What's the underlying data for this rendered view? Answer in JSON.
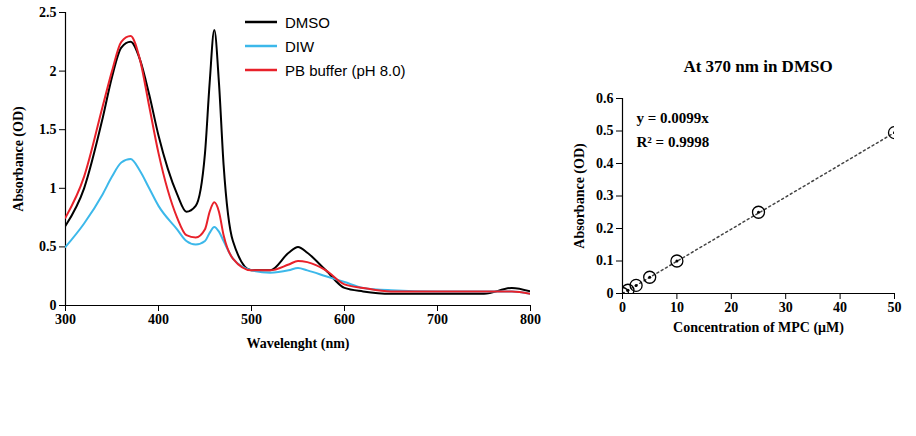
{
  "chart_data": [
    {
      "type": "line",
      "x_label": "Wavelenght (nm)",
      "y_label": "Absorbance (OD)",
      "x": [
        300,
        320,
        340,
        350,
        360,
        370,
        380,
        390,
        400,
        420,
        430,
        440,
        450,
        455,
        460,
        465,
        470,
        480,
        500,
        520,
        540,
        550,
        560,
        580,
        600,
        620,
        650,
        700,
        750,
        780,
        800
      ],
      "series": [
        {
          "name": "DMSO",
          "color": "#000000",
          "values": [
            0.68,
            1.0,
            1.6,
            1.95,
            2.2,
            2.25,
            2.1,
            1.8,
            1.45,
            0.95,
            0.8,
            0.85,
            1.3,
            1.9,
            2.35,
            1.9,
            1.2,
            0.55,
            0.3,
            0.3,
            0.45,
            0.5,
            0.45,
            0.3,
            0.15,
            0.12,
            0.1,
            0.1,
            0.1,
            0.15,
            0.12
          ]
        },
        {
          "name": "DIW",
          "color": "#3cb8ea",
          "values": [
            0.5,
            0.7,
            0.95,
            1.1,
            1.22,
            1.25,
            1.15,
            1.0,
            0.85,
            0.65,
            0.55,
            0.52,
            0.55,
            0.62,
            0.67,
            0.63,
            0.55,
            0.4,
            0.3,
            0.28,
            0.3,
            0.32,
            0.3,
            0.25,
            0.2,
            0.15,
            0.13,
            0.12,
            0.12,
            0.12,
            0.1
          ]
        },
        {
          "name": "PB buffer (pH 8.0)",
          "color": "#e8212a",
          "values": [
            0.75,
            1.1,
            1.7,
            2.0,
            2.25,
            2.3,
            2.1,
            1.7,
            1.3,
            0.75,
            0.6,
            0.58,
            0.65,
            0.8,
            0.88,
            0.8,
            0.6,
            0.4,
            0.3,
            0.3,
            0.35,
            0.38,
            0.37,
            0.3,
            0.18,
            0.15,
            0.12,
            0.12,
            0.12,
            0.12,
            0.1
          ]
        }
      ],
      "xlim": [
        300,
        800
      ],
      "xticks": [
        300,
        400,
        500,
        600,
        700,
        800
      ],
      "ylim": [
        0,
        2.5
      ],
      "yticks": [
        0,
        0.5,
        1,
        1.5,
        2,
        2.5
      ],
      "legend": "top",
      "grid": false
    },
    {
      "type": "scatter",
      "title": "At 370 nm in DMSO",
      "x_label": "Concentration of MPC (μM)",
      "y_label": "Absorbance (OD)",
      "x": [
        0,
        1,
        2.5,
        5,
        10,
        25,
        50
      ],
      "values": [
        0,
        0.01,
        0.025,
        0.05,
        0.1,
        0.25,
        0.495
      ],
      "color": "#000000",
      "marker": "circle",
      "trendline": {
        "x": [
          0,
          50
        ],
        "values": [
          0,
          0.495
        ],
        "line_style": "dotted"
      },
      "annotations": [
        "y = 0.0099x",
        "R² = 0.9998"
      ],
      "xlim": [
        0,
        50
      ],
      "xticks": [
        0,
        10,
        20,
        30,
        40,
        50
      ],
      "ylim": [
        0,
        0.6
      ],
      "yticks": [
        0,
        0.1,
        0.2,
        0.3,
        0.4,
        0.5,
        0.6
      ],
      "grid": false
    }
  ]
}
